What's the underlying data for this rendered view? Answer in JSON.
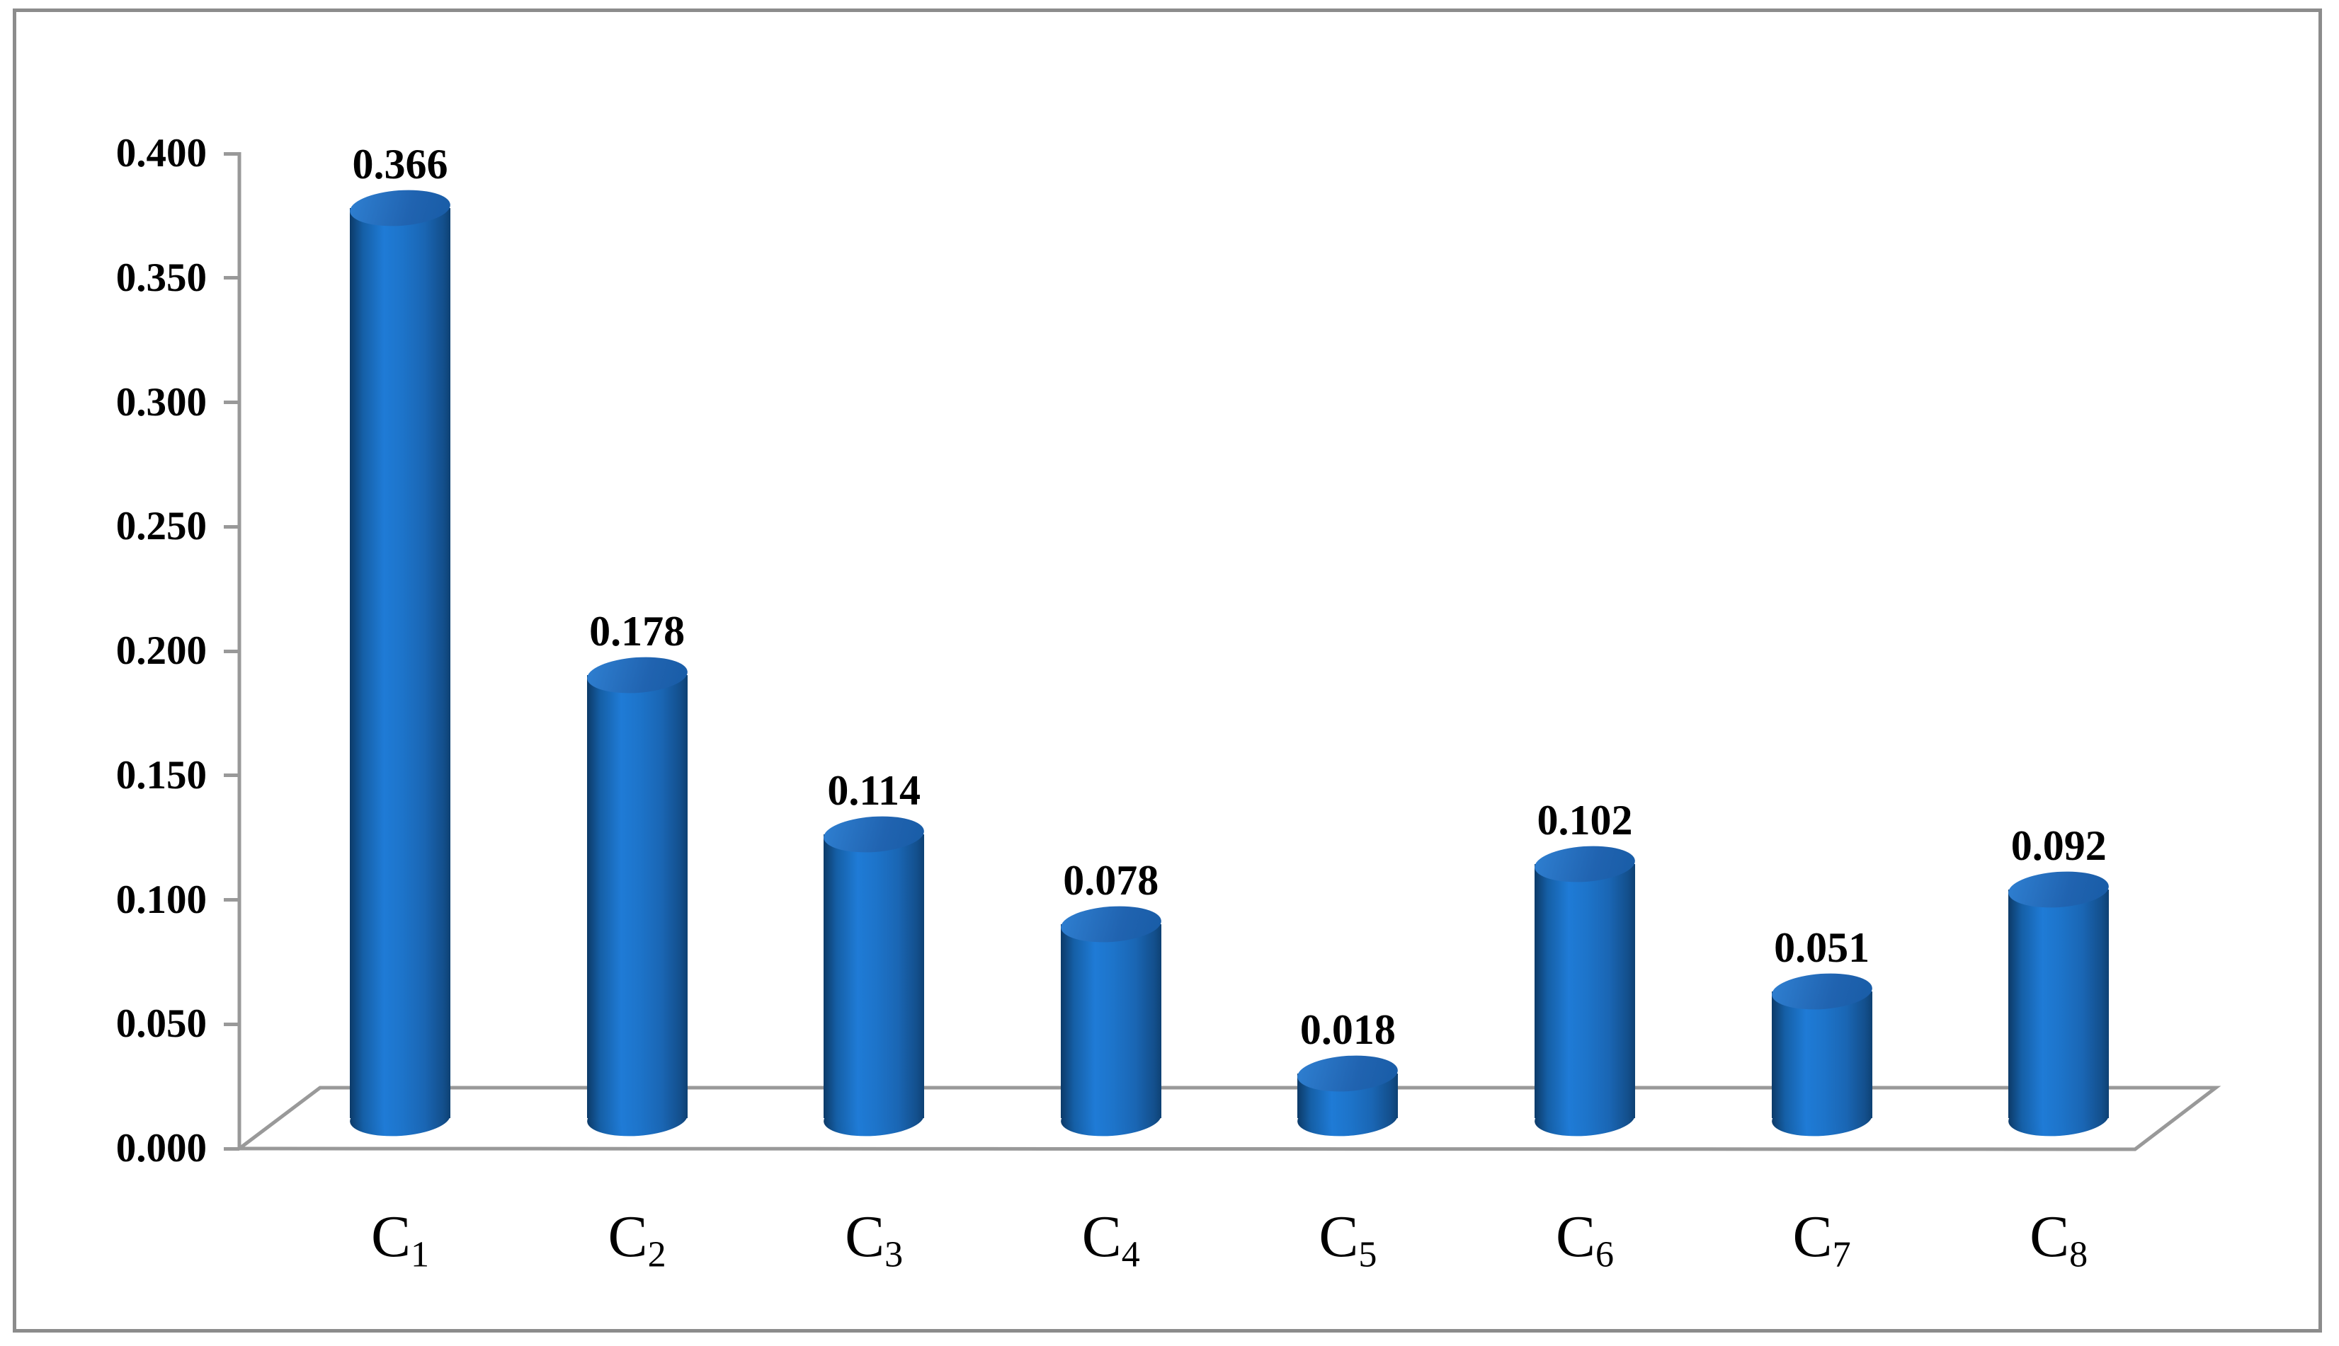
{
  "chart_data": {
    "type": "bar",
    "subtype": "3d-cylinder-column",
    "title": "",
    "xlabel": "",
    "ylabel": "",
    "categories": [
      {
        "base": "C",
        "sub": "1"
      },
      {
        "base": "C",
        "sub": "2"
      },
      {
        "base": "C",
        "sub": "3"
      },
      {
        "base": "C",
        "sub": "4"
      },
      {
        "base": "C",
        "sub": "5"
      },
      {
        "base": "C",
        "sub": "6"
      },
      {
        "base": "C",
        "sub": "7"
      },
      {
        "base": "C",
        "sub": "8"
      }
    ],
    "categories_text": [
      "C1",
      "C2",
      "C3",
      "C4",
      "C5",
      "C6",
      "C7",
      "C8"
    ],
    "values": [
      0.366,
      0.178,
      0.114,
      0.078,
      0.018,
      0.102,
      0.051,
      0.092
    ],
    "data_labels": [
      "0.366",
      "0.178",
      "0.114",
      "0.078",
      "0.018",
      "0.102",
      "0.051",
      "0.092"
    ],
    "yticks": [
      "0.400",
      "0.350",
      "0.300",
      "0.250",
      "0.200",
      "0.150",
      "0.100",
      "0.050",
      "0.000"
    ],
    "ylim": [
      0.0,
      0.4
    ],
    "ytick_step": 0.05,
    "grid": false,
    "legend_position": "none",
    "colors": {
      "background": "#FFFFFF",
      "frame": "#8C8C8C",
      "axis": "#999999",
      "text": "#000000",
      "bar_main": "#1D74CA",
      "bar_gradient": [
        "#0C3A68",
        "#155FA6",
        "#1F7BD6",
        "#1D74CA",
        "#1A66B4",
        "#134F8C",
        "#0E4173"
      ],
      "cap_gradient": [
        "#2F80D2",
        "#2063B0",
        "#185CA6"
      ]
    }
  }
}
